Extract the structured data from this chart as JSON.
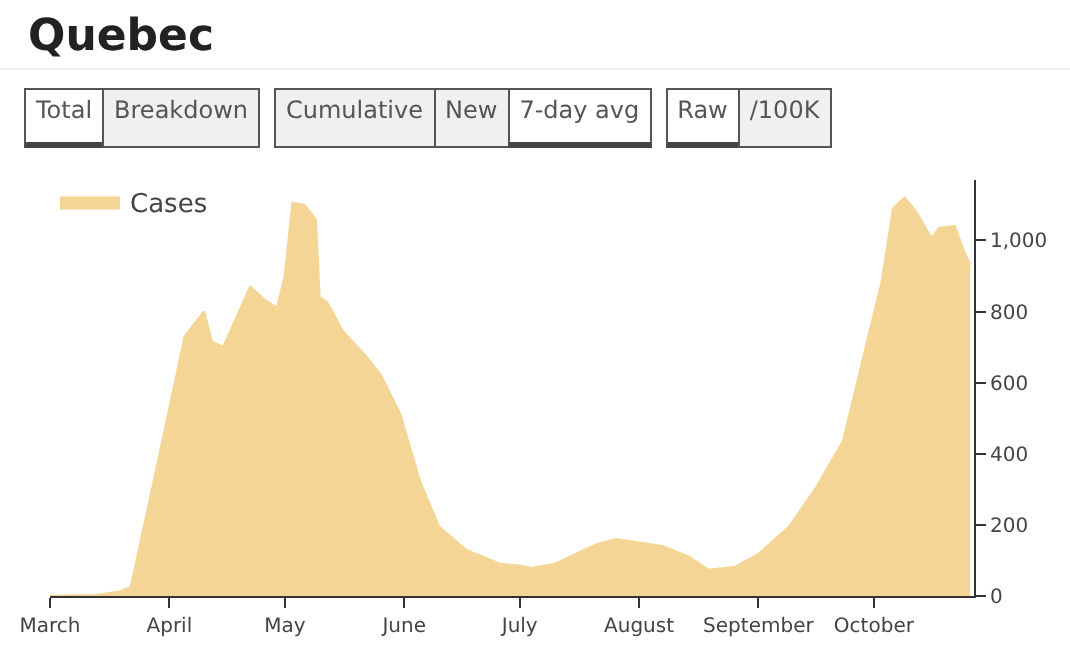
{
  "chart_data": {
    "type": "area",
    "title": "Quebec",
    "annotations": [
      "Total",
      "Breakdown",
      "Cumulative",
      "New",
      "7-day avg",
      "Raw",
      "/100K"
    ],
    "x": [
      "--03-01",
      "--03-13",
      "--03-19",
      "--03-22",
      "--03-31",
      "--04-05",
      "--04-10",
      "--04-12",
      "--04-15",
      "--04-22",
      "--04-26",
      "--04-29",
      "--05-01",
      "--05-03",
      "--05-06",
      "--05-09",
      "--05-10",
      "--05-12",
      "--05-16",
      "--05-22",
      "--05-26",
      "--05-31",
      "--06-05",
      "--06-10",
      "--06-17",
      "--06-26",
      "--07-01",
      "--07-04",
      "--07-10",
      "--07-21",
      "--07-26",
      "--08-01",
      "--08-07",
      "--08-14",
      "--08-19",
      "--08-26",
      "--09-01",
      "--09-09",
      "--09-16",
      "--09-23",
      "--09-28",
      "--10-03",
      "--10-06",
      "--10-09",
      "--10-12",
      "--10-16",
      "--10-18",
      "--10-22",
      "--10-24",
      "--10-26"
    ],
    "series": [
      {
        "name": "Cases",
        "color": "#f5d595",
        "values": [
          0,
          2,
          12,
          25,
          475,
          730,
          800,
          715,
          700,
          870,
          830,
          810,
          900,
          1105,
          1100,
          1060,
          840,
          825,
          745,
          675,
          620,
          510,
          325,
          195,
          130,
          90,
          85,
          78,
          90,
          145,
          160,
          150,
          140,
          110,
          73,
          82,
          117,
          195,
          305,
          435,
          660,
          880,
          1090,
          1120,
          1080,
          1005,
          1035,
          1040,
          980,
          930
        ]
      }
    ],
    "xlim": [
      "--03-01",
      "--10-27"
    ],
    "xticks": [
      {
        "value": "--03-01",
        "label": "March"
      },
      {
        "value": "--04-01",
        "label": "April"
      },
      {
        "value": "--05-01",
        "label": "May"
      },
      {
        "value": "--06-01",
        "label": "June"
      },
      {
        "value": "--07-01",
        "label": "July"
      },
      {
        "value": "--08-01",
        "label": "August"
      },
      {
        "value": "--09-01",
        "label": "September"
      },
      {
        "value": "--10-01",
        "label": "October"
      }
    ],
    "ylim": [
      0,
      1170
    ],
    "yticks": [
      0,
      200,
      400,
      600,
      800,
      {
        "value": 1000,
        "label": "1,000"
      }
    ],
    "legend": "top left",
    "grid": false
  }
}
